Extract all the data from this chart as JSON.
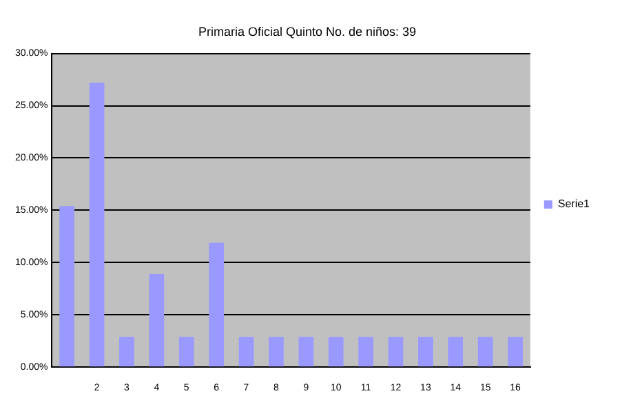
{
  "chart_data": {
    "type": "bar",
    "title": "Primaria Oficial Quinto No. de niños: 39",
    "categories": [
      null,
      "2",
      "3",
      "4",
      "5",
      "6",
      "7",
      "8",
      "9",
      "10",
      "11",
      "12",
      "13",
      "14",
      "15",
      "16"
    ],
    "series": [
      {
        "name": "Serie1",
        "color": "#9999ff",
        "values": [
          15.4,
          27.2,
          2.9,
          8.9,
          2.9,
          11.9,
          2.9,
          2.9,
          2.9,
          2.9,
          2.9,
          2.9,
          2.9,
          2.9,
          2.9,
          2.9
        ]
      }
    ],
    "ylim": [
      0,
      30
    ],
    "yticks": [
      {
        "value": 0,
        "label": "0.00%"
      },
      {
        "value": 5,
        "label": "5.00%"
      },
      {
        "value": 10,
        "label": "10.00%"
      },
      {
        "value": 15,
        "label": "15.00%"
      },
      {
        "value": 20,
        "label": "20.00%"
      },
      {
        "value": 25,
        "label": "25.00%"
      },
      {
        "value": 30,
        "label": "30.00%"
      }
    ],
    "grid": "y",
    "legend": "right"
  }
}
